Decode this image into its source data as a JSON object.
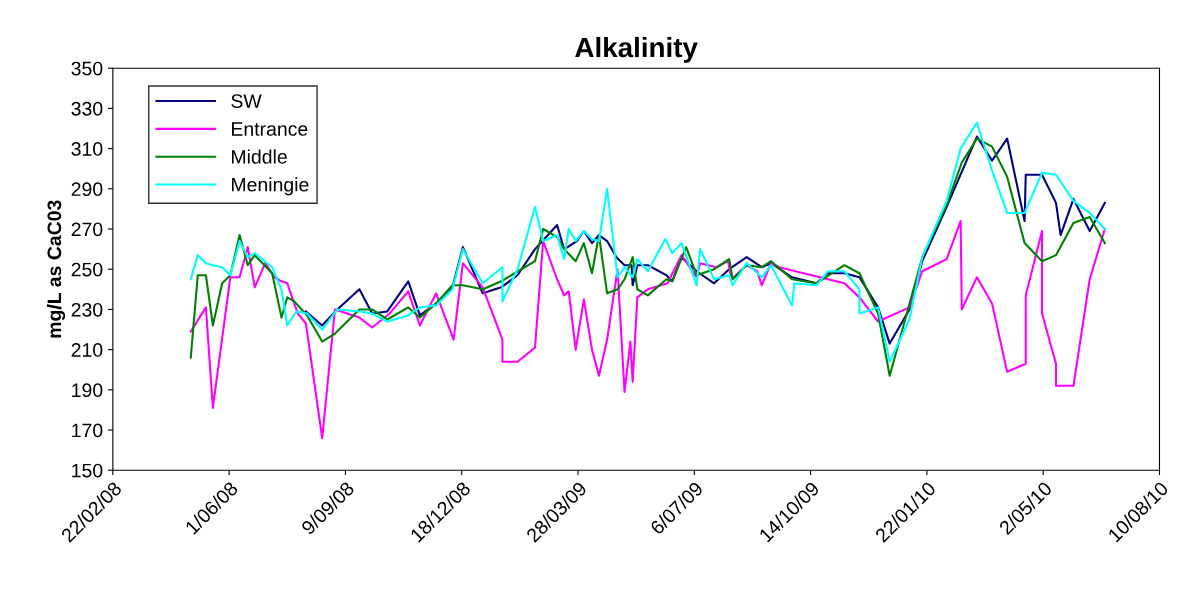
{
  "chart_data": {
    "type": "line",
    "title": "Alkalinity",
    "ylabel": "mg/L as CaC03",
    "ylim": [
      150,
      350
    ],
    "yticks": [
      150,
      170,
      190,
      210,
      230,
      250,
      270,
      290,
      310,
      330,
      350
    ],
    "xlim": [
      "2008-02-22",
      "2010-08-10"
    ],
    "xticks": [
      {
        "value": "2008-02-22",
        "label": "22/02/08"
      },
      {
        "value": "2008-06-01",
        "label": "1/06/08"
      },
      {
        "value": "2008-09-09",
        "label": "9/09/08"
      },
      {
        "value": "2008-12-18",
        "label": "18/12/08"
      },
      {
        "value": "2009-03-28",
        "label": "28/03/09"
      },
      {
        "value": "2009-07-06",
        "label": "6/07/09"
      },
      {
        "value": "2009-10-14",
        "label": "14/10/09"
      },
      {
        "value": "2010-01-22",
        "label": "22/01/10"
      },
      {
        "value": "2010-05-02",
        "label": "2/05/10"
      },
      {
        "value": "2010-08-10",
        "label": "10/08/10"
      }
    ],
    "grid": false,
    "legend": "top left",
    "series": [
      {
        "name": "SW",
        "color": "#000080",
        "x": [
          "2008-08-06",
          "2008-08-20",
          "2008-09-02",
          "2008-09-21",
          "2008-10-02",
          "2008-10-15",
          "2008-11-02",
          "2008-11-12",
          "2008-11-26",
          "2008-12-10",
          "2008-12-19",
          "2009-01-05",
          "2009-01-21",
          "2009-02-04",
          "2009-02-19",
          "2009-03-10",
          "2009-03-16",
          "2009-03-19",
          "2009-03-27",
          "2009-04-02",
          "2009-04-09",
          "2009-04-15",
          "2009-04-22",
          "2009-04-30",
          "2009-05-07",
          "2009-05-13",
          "2009-05-14",
          "2009-05-18",
          "2009-05-27",
          "2009-06-12",
          "2009-06-17",
          "2009-06-25",
          "2009-07-08",
          "2009-07-23",
          "2009-08-05",
          "2009-08-20",
          "2009-09-02",
          "2009-09-10",
          "2009-09-28",
          "2009-10-19",
          "2009-10-29",
          "2009-11-12",
          "2009-11-25",
          "2009-12-11",
          "2009-12-21",
          "2010-01-07",
          "2010-01-18",
          "2010-02-08",
          "2010-03-06",
          "2010-03-19",
          "2010-04-01",
          "2010-04-16",
          "2010-04-17",
          "2010-05-01",
          "2010-05-13",
          "2010-05-17",
          "2010-05-28",
          "2010-06-11",
          "2010-06-24"
        ],
        "values": [
          229,
          222,
          230,
          240,
          228,
          229,
          244,
          227,
          233,
          241,
          261,
          238,
          241,
          247,
          260,
          272,
          260,
          261,
          264,
          269,
          263,
          267,
          264,
          256,
          252,
          252,
          242,
          252,
          252,
          247,
          244,
          256,
          249,
          243,
          250,
          256,
          251,
          253,
          246,
          243,
          248,
          248,
          246,
          231,
          213,
          230,
          254,
          281,
          316,
          304,
          315,
          274,
          297,
          297,
          283,
          267,
          285,
          269,
          283
        ]
      },
      {
        "name": "Entrance",
        "color": "#ff00ff",
        "x": [
          "2008-04-29",
          "2008-05-12",
          "2008-05-18",
          "2008-06-02",
          "2008-06-10",
          "2008-06-17",
          "2008-06-23",
          "2008-07-02",
          "2008-07-10",
          "2008-07-16",
          "2008-07-21",
          "2008-07-30",
          "2008-08-06",
          "2008-08-20",
          "2008-08-31",
          "2008-09-21",
          "2008-10-02",
          "2008-10-17",
          "2008-11-02",
          "2008-11-12",
          "2008-11-26",
          "2008-12-11",
          "2008-12-19",
          "2009-01-05",
          "2009-01-22",
          "2009-01-22",
          "2009-02-04",
          "2009-02-19",
          "2009-02-26",
          "2009-03-10",
          "2009-03-16",
          "2009-03-20",
          "2009-03-26",
          "2009-04-02",
          "2009-04-09",
          "2009-04-15",
          "2009-04-22",
          "2009-05-01",
          "2009-05-07",
          "2009-05-12",
          "2009-05-14",
          "2009-05-18",
          "2009-05-27",
          "2009-06-13",
          "2009-06-25",
          "2009-07-08",
          "2009-07-11",
          "2009-07-25",
          "2009-08-04",
          "2009-08-07",
          "2009-08-20",
          "2009-08-29",
          "2009-09-02",
          "2009-09-10",
          "2009-09-17",
          "2009-11-12",
          "2009-11-25",
          "2009-12-11",
          "2010-01-07",
          "2010-01-18",
          "2010-02-08",
          "2010-02-20",
          "2010-02-21",
          "2010-03-06",
          "2010-03-19",
          "2010-04-01",
          "2010-04-17",
          "2010-04-17",
          "2010-05-01",
          "2010-05-01",
          "2010-05-13",
          "2010-05-13",
          "2010-05-28",
          "2010-06-11",
          "2010-06-24"
        ],
        "values": [
          219,
          231,
          181,
          246,
          246,
          261,
          241,
          253,
          246,
          244,
          243,
          228,
          223,
          166,
          230,
          226,
          221,
          228,
          239,
          222,
          238,
          215,
          253,
          241,
          215,
          204,
          204,
          211,
          264,
          245,
          237,
          239,
          210,
          235,
          210,
          197,
          215,
          250,
          189,
          214,
          194,
          236,
          240,
          243,
          257,
          246,
          253,
          251,
          254,
          245,
          252,
          249,
          242,
          253,
          251,
          243,
          236,
          224,
          231,
          249,
          255,
          274,
          230,
          246,
          233,
          199,
          203,
          237,
          269,
          228,
          203,
          192,
          192,
          245,
          270
        ]
      },
      {
        "name": "Middle",
        "color": "#008000",
        "x": [
          "2008-04-29",
          "2008-05-05",
          "2008-05-12",
          "2008-05-18",
          "2008-05-26",
          "2008-06-02",
          "2008-06-10",
          "2008-06-17",
          "2008-06-23",
          "2008-07-08",
          "2008-07-16",
          "2008-07-21",
          "2008-07-27",
          "2008-08-07",
          "2008-08-20",
          "2008-08-31",
          "2008-09-21",
          "2008-10-02",
          "2008-10-15",
          "2008-11-02",
          "2008-11-12",
          "2008-11-26",
          "2008-12-10",
          "2008-12-19",
          "2009-01-05",
          "2009-01-21",
          "2009-02-19",
          "2009-02-26",
          "2009-03-10",
          "2009-03-16",
          "2009-03-26",
          "2009-04-02",
          "2009-04-09",
          "2009-04-15",
          "2009-04-22",
          "2009-05-01",
          "2009-05-07",
          "2009-05-14",
          "2009-05-18",
          "2009-05-27",
          "2009-06-12",
          "2009-06-17",
          "2009-06-29",
          "2009-07-08",
          "2009-07-23",
          "2009-08-05",
          "2009-08-08",
          "2009-08-20",
          "2009-09-02",
          "2009-09-10",
          "2009-09-28",
          "2009-10-19",
          "2009-11-12",
          "2009-11-25",
          "2009-12-11",
          "2009-12-21",
          "2010-01-18",
          "2010-02-08",
          "2010-02-21",
          "2010-03-06",
          "2010-03-19",
          "2010-04-01",
          "2010-04-16",
          "2010-05-01",
          "2010-05-13",
          "2010-05-28",
          "2010-06-11",
          "2010-06-24"
        ],
        "values": [
          206,
          247,
          247,
          222,
          243,
          247,
          267,
          252,
          257,
          248,
          226,
          236,
          234,
          227,
          214,
          218,
          230,
          230,
          225,
          231,
          226,
          233,
          242,
          242,
          240,
          244,
          254,
          270,
          266,
          260,
          254,
          263,
          248,
          267,
          238,
          240,
          245,
          256,
          240,
          237,
          245,
          244,
          261,
          247,
          250,
          255,
          245,
          252,
          251,
          254,
          245,
          243,
          252,
          248,
          228,
          197,
          256,
          282,
          303,
          315,
          311,
          296,
          263,
          254,
          257,
          273,
          276,
          263
        ]
      },
      {
        "name": "Meningie",
        "color": "#00ffff",
        "x": [
          "2008-04-29",
          "2008-05-05",
          "2008-05-12",
          "2008-05-18",
          "2008-05-26",
          "2008-06-02",
          "2008-06-10",
          "2008-06-17",
          "2008-06-23",
          "2008-07-08",
          "2008-07-16",
          "2008-07-21",
          "2008-07-29",
          "2008-08-07",
          "2008-08-20",
          "2008-09-02",
          "2008-09-21",
          "2008-10-02",
          "2008-10-15",
          "2008-11-02",
          "2008-11-12",
          "2008-11-26",
          "2008-12-10",
          "2008-12-19",
          "2009-01-05",
          "2009-01-22",
          "2009-01-22",
          "2009-02-04",
          "2009-02-19",
          "2009-02-26",
          "2009-03-10",
          "2009-03-16",
          "2009-03-20",
          "2009-03-26",
          "2009-04-02",
          "2009-04-09",
          "2009-04-15",
          "2009-04-22",
          "2009-05-01",
          "2009-05-07",
          "2009-05-14",
          "2009-05-18",
          "2009-05-27",
          "2009-06-11",
          "2009-06-17",
          "2009-06-25",
          "2009-07-08",
          "2009-07-11",
          "2009-07-23",
          "2009-08-05",
          "2009-08-08",
          "2009-08-20",
          "2009-09-02",
          "2009-09-10",
          "2009-09-28",
          "2009-09-30",
          "2009-10-19",
          "2009-10-29",
          "2009-11-12",
          "2009-11-25",
          "2009-11-25",
          "2009-12-11",
          "2009-12-21",
          "2010-01-07",
          "2010-01-18",
          "2010-02-08",
          "2010-02-20",
          "2010-03-06",
          "2010-03-19",
          "2010-04-01",
          "2010-04-16",
          "2010-05-01",
          "2010-05-13",
          "2010-05-28",
          "2010-06-11",
          "2010-06-24"
        ],
        "values": [
          245,
          257,
          253,
          252,
          251,
          247,
          264,
          256,
          258,
          251,
          240,
          222,
          229,
          228,
          220,
          230,
          229,
          228,
          224,
          227,
          231,
          232,
          240,
          260,
          243,
          251,
          234,
          250,
          281,
          264,
          267,
          255,
          270,
          264,
          269,
          265,
          264,
          290,
          246,
          251,
          246,
          255,
          249,
          265,
          258,
          263,
          242,
          260,
          245,
          247,
          242,
          253,
          246,
          252,
          232,
          243,
          242,
          249,
          249,
          240,
          228,
          231,
          204,
          225,
          256,
          284,
          310,
          323,
          299,
          278,
          278,
          298,
          297,
          284,
          278,
          270
        ]
      }
    ]
  }
}
